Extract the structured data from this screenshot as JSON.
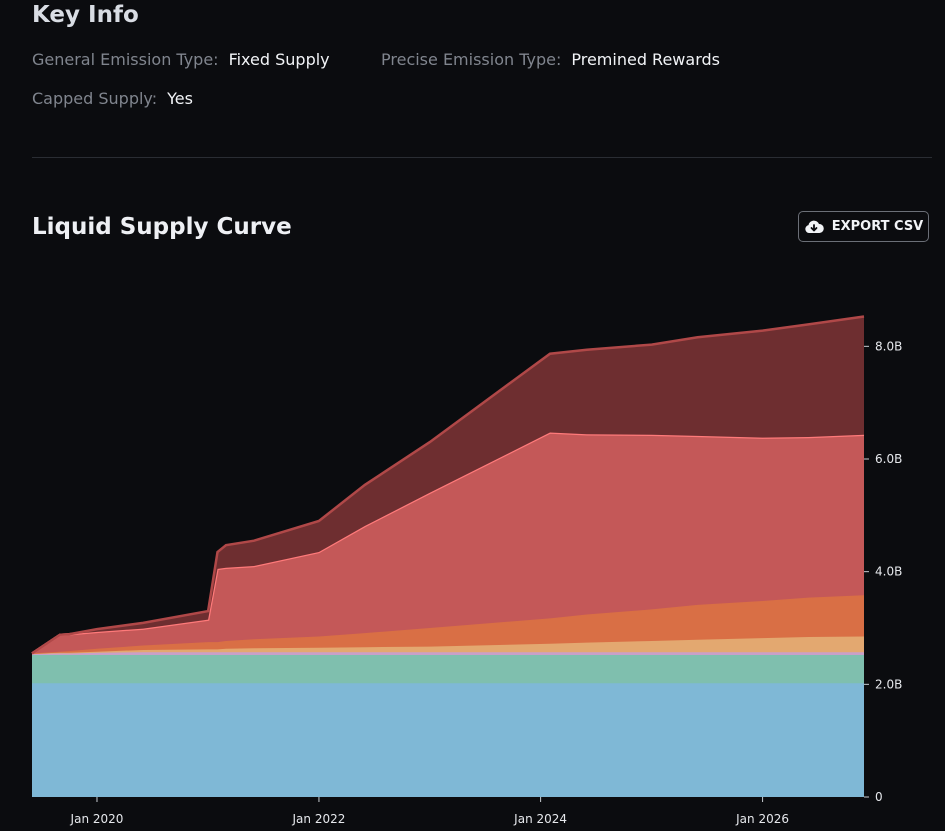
{
  "key_info": {
    "title": "Key Info",
    "general_emission_label": "General Emission Type:",
    "general_emission_value": "Fixed Supply",
    "precise_emission_label": "Precise Emission Type:",
    "precise_emission_value": "Premined Rewards",
    "capped_supply_label": "Capped Supply:",
    "capped_supply_value": "Yes"
  },
  "chart_section": {
    "title": "Liquid Supply Curve",
    "export_label": "EXPORT CSV"
  },
  "chart_data": {
    "type": "area",
    "stacked": true,
    "title": "Liquid Supply Curve",
    "y_unit": "B",
    "ylim": [
      0,
      9.0
    ],
    "y_ticks": [
      {
        "value": 0,
        "label": "0"
      },
      {
        "value": 2,
        "label": "2.0B"
      },
      {
        "value": 4,
        "label": "4.0B"
      },
      {
        "value": 6,
        "label": "6.0B"
      },
      {
        "value": 8,
        "label": "8.0B"
      }
    ],
    "xlim": [
      "2019-06-01",
      "2026-12-01"
    ],
    "x_ticks": [
      {
        "date": "2020-01-01",
        "label": "Jan 2020"
      },
      {
        "date": "2022-01-01",
        "label": "Jan 2022"
      },
      {
        "date": "2024-01-01",
        "label": "Jan 2024"
      },
      {
        "date": "2026-01-01",
        "label": "Jan 2026"
      }
    ],
    "x": [
      "2019-06-01",
      "2019-09-01",
      "2019-10-01",
      "2020-01-01",
      "2020-06-01",
      "2021-01-01",
      "2021-02-01",
      "2021-03-01",
      "2021-06-01",
      "2022-01-01",
      "2022-06-01",
      "2023-01-01",
      "2024-02-01",
      "2024-06-01",
      "2025-01-01",
      "2025-06-01",
      "2026-01-01",
      "2026-06-01",
      "2026-12-01"
    ],
    "grid": false,
    "legend": "none",
    "series": [
      {
        "color": "#7fb8d6",
        "values": [
          2.02,
          2.02,
          2.02,
          2.02,
          2.02,
          2.02,
          2.02,
          2.02,
          2.02,
          2.02,
          2.02,
          2.02,
          2.02,
          2.02,
          2.02,
          2.02,
          2.02,
          2.02,
          2.02
        ]
      },
      {
        "color": "#7fbfae",
        "values": [
          0.5,
          0.5,
          0.5,
          0.5,
          0.5,
          0.5,
          0.5,
          0.5,
          0.5,
          0.5,
          0.5,
          0.5,
          0.5,
          0.5,
          0.5,
          0.5,
          0.5,
          0.5,
          0.5
        ]
      },
      {
        "color": "#c9a0c8",
        "values": [
          0.03,
          0.03,
          0.03,
          0.04,
          0.05,
          0.05,
          0.05,
          0.05,
          0.05,
          0.05,
          0.05,
          0.05,
          0.05,
          0.05,
          0.05,
          0.05,
          0.05,
          0.05,
          0.05
        ]
      },
      {
        "color": "#e3a870",
        "values": [
          0.0,
          0.01,
          0.01,
          0.02,
          0.04,
          0.05,
          0.05,
          0.06,
          0.07,
          0.08,
          0.09,
          0.1,
          0.15,
          0.17,
          0.2,
          0.22,
          0.25,
          0.27,
          0.28
        ]
      },
      {
        "color": "#d96f45",
        "values": [
          0.0,
          0.02,
          0.03,
          0.05,
          0.08,
          0.13,
          0.13,
          0.14,
          0.16,
          0.2,
          0.25,
          0.33,
          0.45,
          0.5,
          0.56,
          0.62,
          0.66,
          0.7,
          0.73
        ]
      },
      {
        "color": "#c45858",
        "values": [
          0.0,
          0.3,
          0.3,
          0.3,
          0.3,
          0.4,
          1.3,
          1.3,
          1.3,
          1.5,
          1.9,
          2.4,
          3.3,
          3.2,
          3.1,
          3.0,
          2.9,
          2.85,
          2.85
        ]
      },
      {
        "color": "#6e2e30",
        "values": [
          0.0,
          0.0,
          0.0,
          0.05,
          0.1,
          0.15,
          0.3,
          0.4,
          0.45,
          0.55,
          0.73,
          0.9,
          1.4,
          1.5,
          1.6,
          1.75,
          1.9,
          2.0,
          2.1
        ]
      }
    ]
  }
}
